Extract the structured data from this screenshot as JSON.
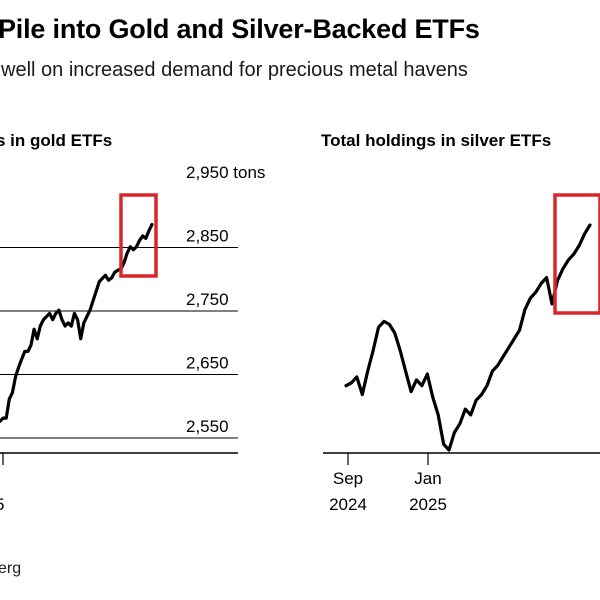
{
  "header": {
    "title": "Pile into Gold and Silver-Backed ETFs",
    "subtitle": "well on increased demand for precious metal havens"
  },
  "footer": {
    "source": "erg"
  },
  "colors": {
    "line": "#000000",
    "highlight": "#d9262b",
    "axis": "#000000"
  },
  "chart_data": [
    {
      "type": "line",
      "title": "s in gold ETFs",
      "ylabel": "",
      "y_unit": "tons",
      "ylim": [
        2530,
        2970
      ],
      "yticks": [
        {
          "value": 2950,
          "label": "2,950 tons"
        },
        {
          "value": 2850,
          "label": "2,850"
        },
        {
          "value": 2750,
          "label": "2,750"
        },
        {
          "value": 2650,
          "label": "2,650"
        },
        {
          "value": 2550,
          "label": "2,550"
        }
      ],
      "xtick_partial": "5",
      "highlight": "latest",
      "series": [
        {
          "values": [
            2570,
            2575,
            2575,
            2605,
            2615,
            2640,
            2655,
            2668,
            2680,
            2680,
            2690,
            2715,
            2700,
            2720,
            2730,
            2735,
            2740,
            2730,
            2740,
            2745,
            2730,
            2720,
            2725,
            2720,
            2740,
            2730,
            2700,
            2725,
            2735,
            2745,
            2760,
            2775,
            2790,
            2795,
            2800,
            2792,
            2796,
            2805,
            2808,
            2810,
            2820,
            2835,
            2845,
            2840,
            2845,
            2855,
            2862,
            2858,
            2870,
            2880
          ]
        }
      ]
    },
    {
      "type": "line",
      "title": "Total holdings in silver ETFs",
      "ylabel": "",
      "xticks": [
        {
          "label": "Sep",
          "year": "2024"
        },
        {
          "label": "Jan",
          "year": "2025"
        }
      ],
      "highlight": "latest",
      "series": [
        {
          "values": [
            40,
            41,
            43,
            37,
            45,
            52,
            60,
            62,
            61,
            58,
            52,
            45,
            38,
            42,
            40,
            44,
            36,
            30,
            20,
            18,
            24,
            27,
            32,
            30,
            35,
            37,
            40,
            45,
            47,
            50,
            53,
            56,
            59,
            66,
            70,
            72,
            75,
            77,
            68,
            76,
            80,
            83,
            85,
            88,
            92,
            95
          ]
        }
      ]
    }
  ]
}
